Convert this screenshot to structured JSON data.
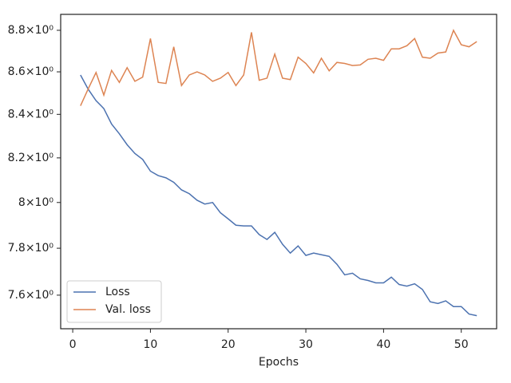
{
  "chart_data": {
    "type": "line",
    "xlabel": "Epochs",
    "x": [
      1,
      2,
      3,
      4,
      5,
      6,
      7,
      8,
      9,
      10,
      11,
      12,
      13,
      14,
      15,
      16,
      17,
      18,
      19,
      20,
      21,
      22,
      23,
      24,
      25,
      26,
      27,
      28,
      29,
      30,
      31,
      32,
      33,
      34,
      35,
      36,
      37,
      38,
      39,
      40,
      41,
      42,
      43,
      44,
      45,
      46,
      47,
      48,
      49,
      50,
      51,
      52
    ],
    "series": [
      {
        "name": "Loss",
        "color": "#4c72b0",
        "values": [
          8.585,
          8.517,
          8.464,
          8.427,
          8.355,
          8.31,
          8.26,
          8.22,
          8.193,
          8.14,
          8.12,
          8.11,
          8.09,
          8.056,
          8.039,
          8.01,
          7.993,
          8.0,
          7.955,
          7.928,
          7.9,
          7.897,
          7.897,
          7.859,
          7.838,
          7.869,
          7.817,
          7.779,
          7.81,
          7.769,
          7.779,
          7.772,
          7.765,
          7.731,
          7.686,
          7.693,
          7.669,
          7.662,
          7.652,
          7.652,
          7.676,
          7.645,
          7.638,
          7.648,
          7.624,
          7.572,
          7.565,
          7.576,
          7.552,
          7.552,
          7.521,
          7.514
        ]
      },
      {
        "name": "Val. loss",
        "color": "#dd8452",
        "values": [
          8.44,
          8.52,
          8.597,
          8.49,
          8.607,
          8.55,
          8.62,
          8.555,
          8.575,
          8.76,
          8.55,
          8.545,
          8.72,
          8.535,
          8.585,
          8.6,
          8.585,
          8.555,
          8.57,
          8.597,
          8.535,
          8.585,
          8.79,
          8.56,
          8.57,
          8.685,
          8.57,
          8.563,
          8.67,
          8.64,
          8.595,
          8.665,
          8.605,
          8.645,
          8.64,
          8.63,
          8.633,
          8.66,
          8.665,
          8.655,
          8.71,
          8.71,
          8.725,
          8.76,
          8.67,
          8.665,
          8.69,
          8.695,
          8.8,
          8.73,
          8.72,
          8.745
        ]
      }
    ],
    "xlim": [
      -1.55,
      54.55
    ],
    "xticks": [
      0,
      10,
      20,
      30,
      40,
      50
    ],
    "ylim": [
      7.46,
      8.878
    ],
    "ylog": true,
    "yticks": [
      {
        "value": 7.6,
        "label": "7.6×10⁰"
      },
      {
        "value": 7.8,
        "label": "7.8×10⁰"
      },
      {
        "value": 8,
        "label": "8×10⁰"
      },
      {
        "value": 8.2,
        "label": "8.2×10⁰"
      },
      {
        "value": 8.4,
        "label": "8.4×10⁰"
      },
      {
        "value": 8.6,
        "label": "8.6×10⁰"
      },
      {
        "value": 8.8,
        "label": "8.8×10⁰"
      }
    ],
    "legend": "lower left"
  }
}
